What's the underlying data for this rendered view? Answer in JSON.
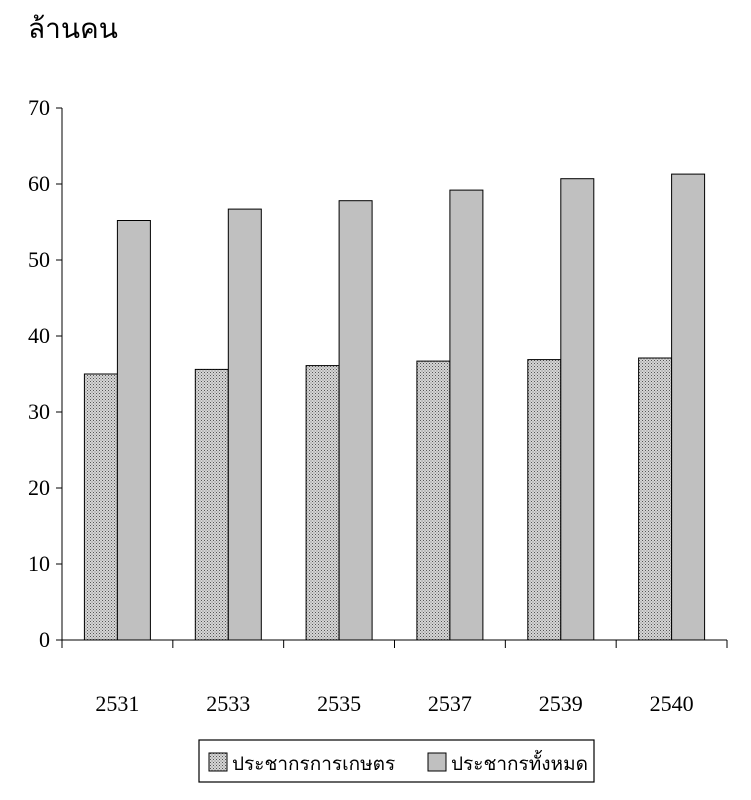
{
  "chart_data": {
    "type": "bar",
    "title": "",
    "ylabel": "ล้านคน",
    "xlabel": "",
    "categories": [
      "2531",
      "2533",
      "2535",
      "2537",
      "2539",
      "2540"
    ],
    "series": [
      {
        "name": "ประชากรการเกษตร",
        "values": [
          35.0,
          35.6,
          36.1,
          36.7,
          36.9,
          37.1
        ],
        "color": "#a8a8a8",
        "pattern": "dotted"
      },
      {
        "name": "ประชากรทั้งหมด",
        "values": [
          55.2,
          56.7,
          57.8,
          59.2,
          60.7,
          61.3
        ],
        "color": "#c0c0c0",
        "pattern": "solid"
      }
    ],
    "ylim": [
      0,
      70
    ],
    "yticks": [
      0,
      10,
      20,
      30,
      40,
      50,
      60,
      70
    ],
    "grid": false,
    "legend_position": "bottom"
  }
}
